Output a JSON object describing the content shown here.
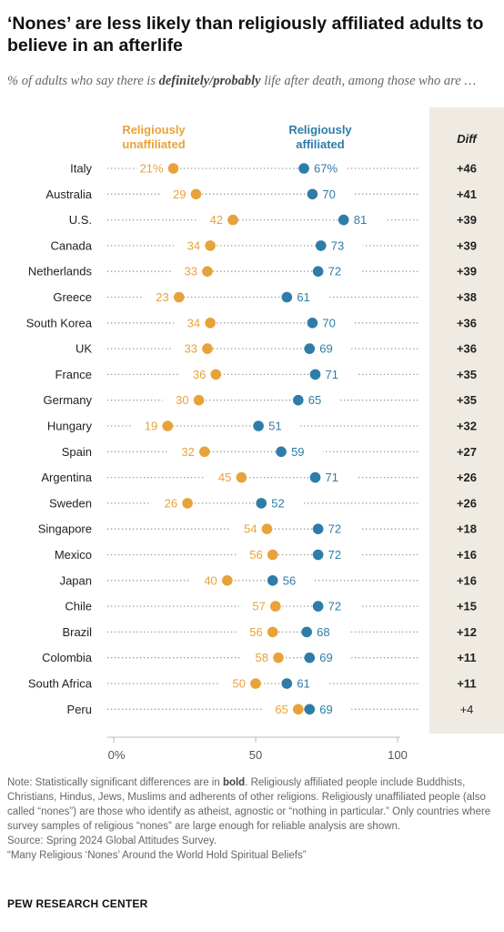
{
  "title": "‘Nones’ are less likely than religiously affiliated adults to believe in an afterlife",
  "subtitle": {
    "before": "% of adults who say there is ",
    "emphasis": "definitely/probably",
    "after": " life after death, among those who are …"
  },
  "colors": {
    "unaffiliated": "#E8A23A",
    "affiliated": "#2E7CA8",
    "diff_panel": "#EFEBE3",
    "dots_line": "#9a9a9a"
  },
  "chart_data": {
    "type": "scatter",
    "subtype": "dot-plot",
    "xlim": [
      0,
      100
    ],
    "x_ticks": [
      "0%",
      "50",
      "100"
    ],
    "legend": {
      "unaffiliated": "Religiously unaffiliated",
      "affiliated": "Religiously affiliated"
    },
    "diff_header": "Diff",
    "rows": [
      {
        "country": "Italy",
        "unaffiliated": 21,
        "affiliated": 67,
        "unaffiliated_label": "21%",
        "affiliated_label": "67%",
        "diff": "+46",
        "bold": true
      },
      {
        "country": "Australia",
        "unaffiliated": 29,
        "affiliated": 70,
        "unaffiliated_label": "29",
        "affiliated_label": "70",
        "diff": "+41",
        "bold": true
      },
      {
        "country": "U.S.",
        "unaffiliated": 42,
        "affiliated": 81,
        "unaffiliated_label": "42",
        "affiliated_label": "81",
        "diff": "+39",
        "bold": true
      },
      {
        "country": "Canada",
        "unaffiliated": 34,
        "affiliated": 73,
        "unaffiliated_label": "34",
        "affiliated_label": "73",
        "diff": "+39",
        "bold": true
      },
      {
        "country": "Netherlands",
        "unaffiliated": 33,
        "affiliated": 72,
        "unaffiliated_label": "33",
        "affiliated_label": "72",
        "diff": "+39",
        "bold": true
      },
      {
        "country": "Greece",
        "unaffiliated": 23,
        "affiliated": 61,
        "unaffiliated_label": "23",
        "affiliated_label": "61",
        "diff": "+38",
        "bold": true
      },
      {
        "country": "South Korea",
        "unaffiliated": 34,
        "affiliated": 70,
        "unaffiliated_label": "34",
        "affiliated_label": "70",
        "diff": "+36",
        "bold": true
      },
      {
        "country": "UK",
        "unaffiliated": 33,
        "affiliated": 69,
        "unaffiliated_label": "33",
        "affiliated_label": "69",
        "diff": "+36",
        "bold": true
      },
      {
        "country": "France",
        "unaffiliated": 36,
        "affiliated": 71,
        "unaffiliated_label": "36",
        "affiliated_label": "71",
        "diff": "+35",
        "bold": true
      },
      {
        "country": "Germany",
        "unaffiliated": 30,
        "affiliated": 65,
        "unaffiliated_label": "30",
        "affiliated_label": "65",
        "diff": "+35",
        "bold": true
      },
      {
        "country": "Hungary",
        "unaffiliated": 19,
        "affiliated": 51,
        "unaffiliated_label": "19",
        "affiliated_label": "51",
        "diff": "+32",
        "bold": true
      },
      {
        "country": "Spain",
        "unaffiliated": 32,
        "affiliated": 59,
        "unaffiliated_label": "32",
        "affiliated_label": "59",
        "diff": "+27",
        "bold": true
      },
      {
        "country": "Argentina",
        "unaffiliated": 45,
        "affiliated": 71,
        "unaffiliated_label": "45",
        "affiliated_label": "71",
        "diff": "+26",
        "bold": true
      },
      {
        "country": "Sweden",
        "unaffiliated": 26,
        "affiliated": 52,
        "unaffiliated_label": "26",
        "affiliated_label": "52",
        "diff": "+26",
        "bold": true
      },
      {
        "country": "Singapore",
        "unaffiliated": 54,
        "affiliated": 72,
        "unaffiliated_label": "54",
        "affiliated_label": "72",
        "diff": "+18",
        "bold": true
      },
      {
        "country": "Mexico",
        "unaffiliated": 56,
        "affiliated": 72,
        "unaffiliated_label": "56",
        "affiliated_label": "72",
        "diff": "+16",
        "bold": true
      },
      {
        "country": "Japan",
        "unaffiliated": 40,
        "affiliated": 56,
        "unaffiliated_label": "40",
        "affiliated_label": "56",
        "diff": "+16",
        "bold": true
      },
      {
        "country": "Chile",
        "unaffiliated": 57,
        "affiliated": 72,
        "unaffiliated_label": "57",
        "affiliated_label": "72",
        "diff": "+15",
        "bold": true
      },
      {
        "country": "Brazil",
        "unaffiliated": 56,
        "affiliated": 68,
        "unaffiliated_label": "56",
        "affiliated_label": "68",
        "diff": "+12",
        "bold": true
      },
      {
        "country": "Colombia",
        "unaffiliated": 58,
        "affiliated": 69,
        "unaffiliated_label": "58",
        "affiliated_label": "69",
        "diff": "+11",
        "bold": true
      },
      {
        "country": "South Africa",
        "unaffiliated": 50,
        "affiliated": 61,
        "unaffiliated_label": "50",
        "affiliated_label": "61",
        "diff": "+11",
        "bold": true
      },
      {
        "country": "Peru",
        "unaffiliated": 65,
        "affiliated": 69,
        "unaffiliated_label": "65",
        "affiliated_label": "69",
        "diff": "+4",
        "bold": false
      }
    ]
  },
  "note": {
    "line1_before": "Note: Statistically significant differences are in ",
    "line1_bold": "bold",
    "line1_after": ". Religiously affiliated people include Buddhists, Christians, Hindus, Jews, Muslims and adherents of other religions. Religiously unaffiliated people (also called “nones”) are those who identify as atheist, agnostic or “nothing in particular.” Only countries where survey samples of religious “nones” are large enough for reliable analysis are shown.",
    "source": "Source: Spring 2024 Global Attitudes Survey.",
    "report": "“Many Religious ‘Nones’ Around the World Hold Spiritual Beliefs”"
  },
  "brand": "PEW RESEARCH CENTER"
}
